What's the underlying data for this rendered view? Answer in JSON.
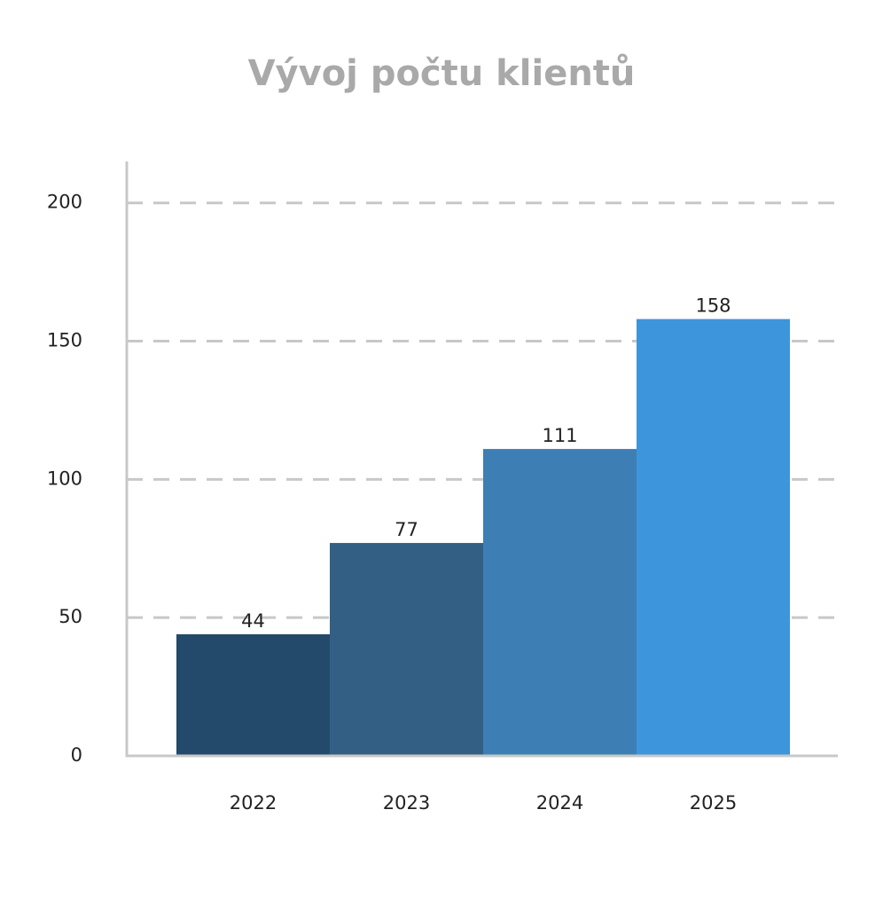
{
  "chart_data": {
    "type": "bar",
    "title": "Vývoj počtu klientů",
    "categories": [
      "2022",
      "2023",
      "2024",
      "2025"
    ],
    "values": [
      44,
      77,
      111,
      158
    ],
    "colors": [
      "#234a6b",
      "#335f85",
      "#3d7fb5",
      "#3d95dc"
    ],
    "ylim": [
      0,
      215
    ],
    "yticks": [
      0,
      50,
      100,
      150,
      200
    ],
    "grid": true
  }
}
